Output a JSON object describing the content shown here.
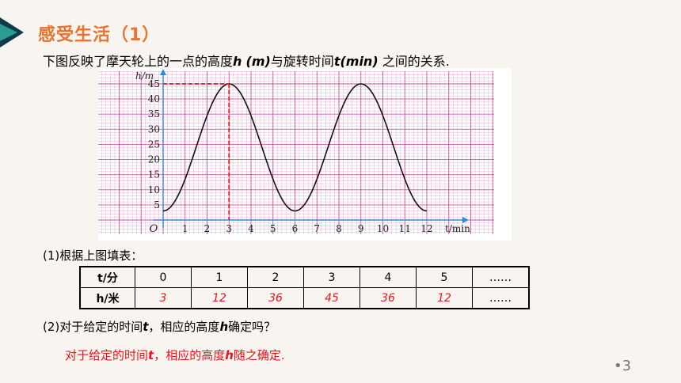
{
  "title": "感受生活（1）",
  "intro": {
    "prefix": "下图反映了摩天轮上的一点的高度",
    "h_var": "h",
    "h_unit": "(m)",
    "mid": "与旋转时间",
    "t_var": "t(min)",
    "suffix": " 之间的关系."
  },
  "chart_data": {
    "type": "line",
    "xlabel": "t/min",
    "ylabel": "h/m",
    "xlim": [
      0,
      12
    ],
    "ylim": [
      0,
      45
    ],
    "origin_label": "O",
    "x_ticks": [
      1,
      2,
      3,
      4,
      5,
      6,
      7,
      8,
      9,
      10,
      11,
      12
    ],
    "y_ticks": [
      5,
      10,
      15,
      20,
      25,
      30,
      35,
      40,
      45
    ],
    "x": [
      0,
      1,
      2,
      3,
      4,
      5,
      6,
      7,
      8,
      9,
      10,
      11,
      12
    ],
    "y": [
      3,
      12,
      36,
      45,
      36,
      12,
      3,
      12,
      36,
      45,
      36,
      12,
      3
    ],
    "highlight_point": [
      3,
      45
    ],
    "grid": true,
    "colors": {
      "grid": "#c2409a",
      "curve": "#111111",
      "axis": "#2a8ae0",
      "marker": "#e8141a"
    }
  },
  "q1": {
    "label": "(1)根据上图填表："
  },
  "table": {
    "row1_header": "t/分",
    "row2_header": "h/米",
    "t_values": [
      "0",
      "1",
      "2",
      "3",
      "4",
      "5",
      "……"
    ],
    "h_values": [
      "3",
      "12",
      "36",
      "45",
      "36",
      "12",
      "……"
    ]
  },
  "q2": {
    "prefix": "(2)对于给定的时间",
    "t": "t",
    "mid": "，相应的高度",
    "h": "h",
    "suffix": "确定吗？"
  },
  "answer": {
    "prefix": "对于给定的时间",
    "t": "t",
    "mid": "，相应的高度",
    "h": "h",
    "suffix": "随之确定."
  },
  "page_number": "•3"
}
